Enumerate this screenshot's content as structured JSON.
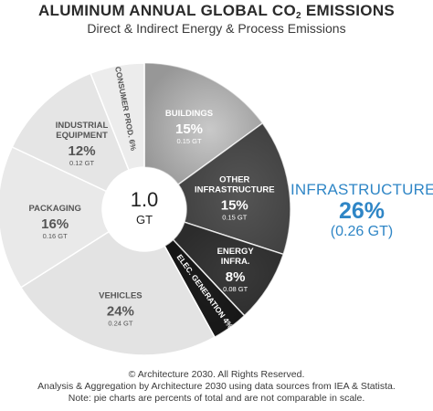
{
  "header": {
    "title_main": "ALUMINUM ANNUAL GLOBAL CO",
    "title_sub": "2",
    "title_end": " EMISSIONS",
    "subtitle": "Direct & Indirect Energy & Process Emissions"
  },
  "chart_data": {
    "type": "pie",
    "total_value": "1.0",
    "total_unit": "GT",
    "slices": [
      {
        "label": "BUILDINGS",
        "pct": "15%",
        "value": 15,
        "gt": "0.15 GT",
        "group": "infrastructure",
        "fill": "#c9c9c9"
      },
      {
        "label": "OTHER INFRASTRUCTURE",
        "pct": "15%",
        "value": 15,
        "gt": "0.15 GT",
        "group": "infrastructure",
        "fill": "#555555"
      },
      {
        "label": "ENERGY INFRA.",
        "pct": "8%",
        "value": 8,
        "gt": "0.08 GT",
        "group": "infrastructure",
        "fill": "#3a3a3a"
      },
      {
        "label": "ELEC. GENERATION 4%",
        "pct": "4%",
        "value": 4,
        "gt": "",
        "group": "infrastructure",
        "fill": "#1c1c1c"
      },
      {
        "label": "VEHICLES",
        "pct": "24%",
        "value": 24,
        "gt": "0.24 GT",
        "group": "other",
        "fill": "#e3e3e3"
      },
      {
        "label": "PACKAGING",
        "pct": "16%",
        "value": 16,
        "gt": "0.16 GT",
        "group": "other",
        "fill": "#e9e9e9"
      },
      {
        "label": "INDUSTRIAL EQUIPMENT",
        "pct": "12%",
        "value": 12,
        "gt": "0.12 GT",
        "group": "other",
        "fill": "#e5e5e5"
      },
      {
        "label": "CONSUMER PROD. 6%",
        "pct": "6%",
        "value": 6,
        "gt": "",
        "group": "other",
        "fill": "#ececec"
      }
    ]
  },
  "callout": {
    "name": "INFRASTRUCTURE",
    "pct": "26%",
    "gt": "(0.26 GT)",
    "color": "#2f86c6"
  },
  "footer": {
    "line1": "© Architecture 2030. All Rights Reserved.",
    "line2": "Analysis & Aggregation by Architecture 2030 using data sources from IEA & Statista.",
    "line3": "Note: pie charts are percents of total and are not comparable in scale."
  }
}
